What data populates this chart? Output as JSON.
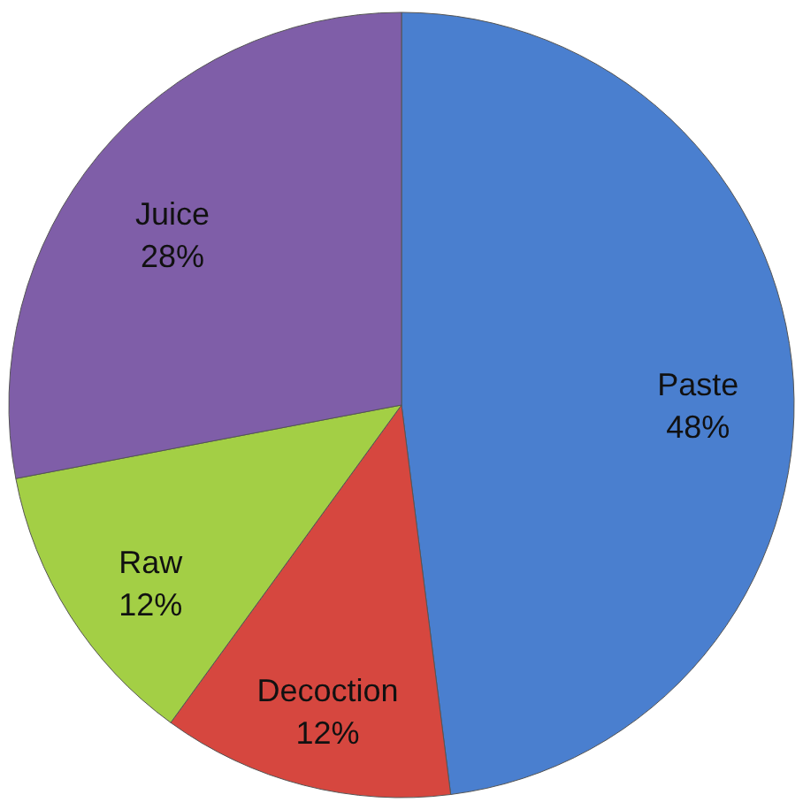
{
  "chart_data": {
    "type": "pie",
    "categories": [
      "Paste",
      "Decoction",
      "Raw",
      "Juice"
    ],
    "values": [
      48,
      12,
      12,
      28
    ],
    "value_labels": [
      "48%",
      "12%",
      "12%",
      "28%"
    ],
    "colors": [
      "#4a7fcf",
      "#d6473f",
      "#a3cf45",
      "#7f5ea8"
    ]
  }
}
